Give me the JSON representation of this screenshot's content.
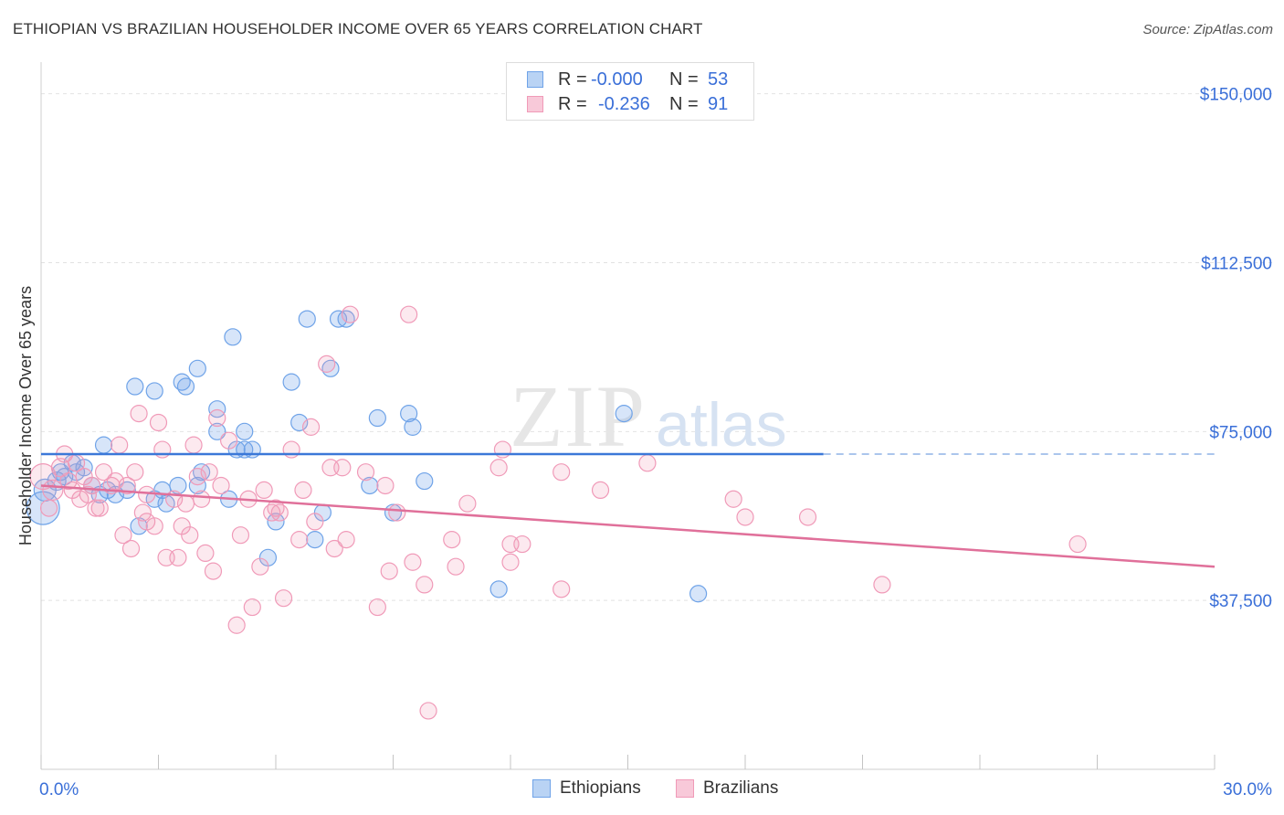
{
  "title": "ETHIOPIAN VS BRAZILIAN HOUSEHOLDER INCOME OVER 65 YEARS CORRELATION CHART",
  "source": "Source: ZipAtlas.com",
  "watermark": {
    "zip": "ZIP",
    "atlas": "atlas"
  },
  "legend": [
    {
      "r_label": "R =",
      "r_value": "-0.000",
      "n_label": "N =",
      "n_value": "53",
      "color": "#6fa3e8",
      "fill": "#b9d3f4"
    },
    {
      "r_label": "R =",
      "r_value": "-0.236",
      "n_label": "N =",
      "n_value": "91",
      "color": "#f09ab8",
      "fill": "#f8c9d9"
    }
  ],
  "bottom_legend": [
    "Ethiopians",
    "Brazilians"
  ],
  "chart_data": {
    "type": "scatter",
    "ylabel": "Householder Income Over 65 years",
    "xlim": [
      0,
      30
    ],
    "ylim": [
      0,
      155000
    ],
    "x_tick_labels": [
      "0.0%",
      "30.0%"
    ],
    "y_ticks": [
      37500,
      75000,
      112500,
      150000
    ],
    "y_tick_labels": [
      "$37,500",
      "$75,000",
      "$112,500",
      "$150,000"
    ],
    "grid": true,
    "series": [
      {
        "name": "Ethiopians",
        "color": "#6fa3e8",
        "trend": {
          "x": [
            0,
            20
          ],
          "y": [
            70000,
            70000
          ],
          "dash_to": 30
        },
        "points": [
          [
            0.05,
            58000,
            18
          ],
          [
            0.1,
            62000,
            12
          ],
          [
            0.4,
            64000,
            10
          ],
          [
            0.5,
            66000,
            9
          ],
          [
            0.8,
            68000,
            9
          ],
          [
            0.9,
            66000,
            9
          ],
          [
            1.1,
            67000,
            9
          ],
          [
            1.6,
            72000,
            9
          ],
          [
            1.9,
            61000,
            9
          ],
          [
            2.2,
            62000,
            9
          ],
          [
            2.5,
            54000,
            9
          ],
          [
            2.9,
            60000,
            9
          ],
          [
            3.2,
            59000,
            9
          ],
          [
            3.5,
            63000,
            9
          ],
          [
            4.0,
            63000,
            9
          ],
          [
            1.5,
            61000,
            9
          ],
          [
            2.4,
            85000,
            9
          ],
          [
            2.9,
            84000,
            9
          ],
          [
            3.6,
            86000,
            9
          ],
          [
            3.7,
            85000,
            9
          ],
          [
            4.0,
            89000,
            9
          ],
          [
            4.5,
            80000,
            9
          ],
          [
            4.5,
            75000,
            9
          ],
          [
            4.8,
            60000,
            9
          ],
          [
            5.0,
            71000,
            9
          ],
          [
            5.2,
            71000,
            9
          ],
          [
            5.2,
            75000,
            9
          ],
          [
            4.9,
            96000,
            9
          ],
          [
            5.8,
            47000,
            9
          ],
          [
            6.0,
            55000,
            9
          ],
          [
            6.4,
            86000,
            9
          ],
          [
            6.6,
            77000,
            9
          ],
          [
            6.8,
            100000,
            9
          ],
          [
            7.0,
            51000,
            9
          ],
          [
            7.2,
            57000,
            9
          ],
          [
            7.4,
            89000,
            9
          ],
          [
            7.6,
            100000,
            9
          ],
          [
            7.8,
            100000,
            9
          ],
          [
            8.4,
            63000,
            9
          ],
          [
            8.6,
            78000,
            9
          ],
          [
            9.0,
            57000,
            9
          ],
          [
            9.4,
            79000,
            9
          ],
          [
            9.5,
            76000,
            9
          ],
          [
            9.8,
            64000,
            9
          ],
          [
            11.7,
            40000,
            9
          ],
          [
            14.9,
            79000,
            9
          ],
          [
            16.8,
            39000,
            9
          ],
          [
            1.7,
            62000,
            9
          ],
          [
            3.1,
            62000,
            9
          ],
          [
            4.1,
            66000,
            9
          ],
          [
            5.4,
            71000,
            9
          ],
          [
            0.6,
            65000,
            9
          ],
          [
            1.3,
            63000,
            9
          ]
        ]
      },
      {
        "name": "Brazilians",
        "color": "#f09ab8",
        "trend": {
          "x": [
            0,
            30
          ],
          "y": [
            63000,
            45000
          ]
        },
        "points": [
          [
            0.05,
            65000,
            14
          ],
          [
            0.3,
            62000,
            11
          ],
          [
            0.5,
            67000,
            10
          ],
          [
            0.6,
            70000,
            9
          ],
          [
            0.7,
            64000,
            9
          ],
          [
            0.9,
            68000,
            9
          ],
          [
            1.0,
            60000,
            9
          ],
          [
            1.1,
            65000,
            9
          ],
          [
            1.3,
            63000,
            9
          ],
          [
            1.5,
            58000,
            9
          ],
          [
            1.6,
            66000,
            9
          ],
          [
            1.8,
            63000,
            9
          ],
          [
            2.0,
            72000,
            9
          ],
          [
            2.1,
            52000,
            9
          ],
          [
            2.3,
            49000,
            9
          ],
          [
            2.4,
            66000,
            9
          ],
          [
            2.5,
            79000,
            9
          ],
          [
            2.6,
            57000,
            9
          ],
          [
            2.7,
            55000,
            9
          ],
          [
            2.9,
            54000,
            9
          ],
          [
            3.0,
            77000,
            9
          ],
          [
            3.1,
            71000,
            9
          ],
          [
            3.2,
            47000,
            9
          ],
          [
            3.5,
            47000,
            9
          ],
          [
            3.6,
            54000,
            9
          ],
          [
            3.8,
            52000,
            9
          ],
          [
            3.9,
            72000,
            9
          ],
          [
            4.0,
            65000,
            9
          ],
          [
            4.2,
            48000,
            9
          ],
          [
            4.3,
            66000,
            9
          ],
          [
            4.4,
            44000,
            9
          ],
          [
            4.5,
            78000,
            9
          ],
          [
            4.6,
            63000,
            9
          ],
          [
            4.8,
            73000,
            9
          ],
          [
            5.0,
            32000,
            9
          ],
          [
            5.1,
            52000,
            9
          ],
          [
            5.3,
            60000,
            9
          ],
          [
            5.4,
            36000,
            9
          ],
          [
            5.6,
            45000,
            9
          ],
          [
            5.9,
            57000,
            9
          ],
          [
            6.0,
            58000,
            9
          ],
          [
            6.2,
            38000,
            9
          ],
          [
            6.4,
            71000,
            9
          ],
          [
            6.6,
            51000,
            9
          ],
          [
            6.7,
            62000,
            9
          ],
          [
            6.9,
            76000,
            9
          ],
          [
            7.0,
            55000,
            9
          ],
          [
            7.3,
            90000,
            9
          ],
          [
            7.4,
            67000,
            9
          ],
          [
            7.5,
            49000,
            9
          ],
          [
            7.7,
            67000,
            9
          ],
          [
            7.8,
            51000,
            9
          ],
          [
            7.9,
            101000,
            9
          ],
          [
            8.3,
            66000,
            9
          ],
          [
            8.6,
            36000,
            9
          ],
          [
            8.9,
            44000,
            9
          ],
          [
            9.1,
            57000,
            9
          ],
          [
            9.4,
            101000,
            9
          ],
          [
            9.5,
            46000,
            9
          ],
          [
            9.8,
            41000,
            9
          ],
          [
            9.9,
            13000,
            9
          ],
          [
            10.5,
            51000,
            9
          ],
          [
            10.6,
            45000,
            9
          ],
          [
            10.9,
            59000,
            9
          ],
          [
            11.7,
            67000,
            9
          ],
          [
            11.8,
            71000,
            9
          ],
          [
            12.0,
            46000,
            9
          ],
          [
            12.0,
            50000,
            9
          ],
          [
            12.3,
            50000,
            9
          ],
          [
            13.3,
            66000,
            9
          ],
          [
            13.3,
            40000,
            9
          ],
          [
            14.3,
            62000,
            9
          ],
          [
            15.5,
            68000,
            9
          ],
          [
            17.7,
            60000,
            9
          ],
          [
            18.0,
            56000,
            9
          ],
          [
            19.6,
            56000,
            9
          ],
          [
            21.5,
            41000,
            9
          ],
          [
            26.5,
            50000,
            9
          ],
          [
            0.2,
            58000,
            9
          ],
          [
            1.2,
            61000,
            9
          ],
          [
            1.9,
            64000,
            9
          ],
          [
            2.7,
            61000,
            9
          ],
          [
            3.4,
            60000,
            9
          ],
          [
            4.1,
            60000,
            9
          ],
          [
            5.7,
            62000,
            9
          ],
          [
            0.8,
            62000,
            9
          ],
          [
            1.4,
            58000,
            9
          ],
          [
            2.2,
            63000,
            9
          ],
          [
            3.7,
            59000,
            9
          ],
          [
            6.1,
            57000,
            9
          ],
          [
            8.8,
            63000,
            9
          ]
        ]
      }
    ]
  }
}
